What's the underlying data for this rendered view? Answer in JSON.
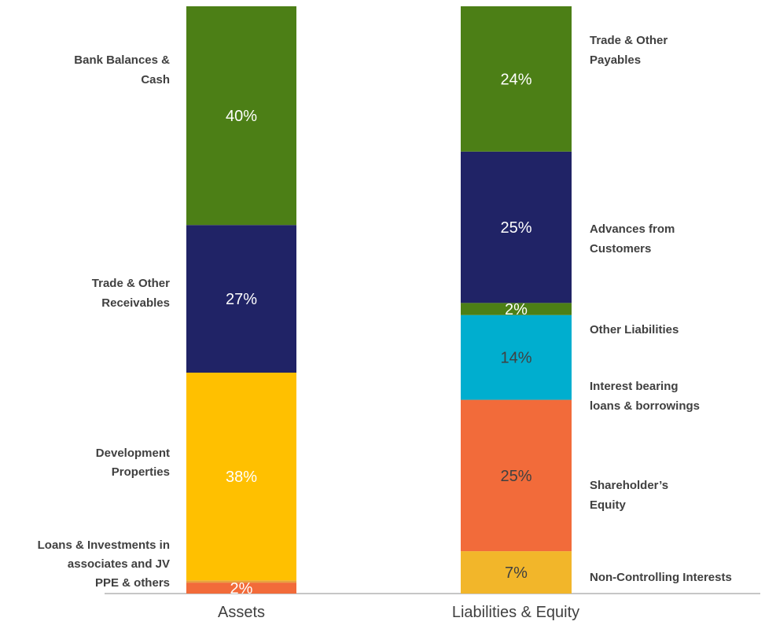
{
  "chart_data": {
    "type": "bar",
    "stacked": true,
    "percent": true,
    "categories": [
      "Assets",
      "Liabilities & Equity"
    ],
    "ylim": [
      0,
      100
    ],
    "grid": false,
    "legend": "none",
    "bars": [
      {
        "category": "Assets",
        "segments": [
          {
            "annotation": [
              "PPE & others"
            ],
            "value": 2,
            "label": "2%",
            "color": "#F26B3A",
            "text_color": "#ffffff"
          },
          {
            "annotation": [
              "Loans & Investments in",
              "associates and JV"
            ],
            "value": 0.4,
            "label": "",
            "color": "#E8A33D",
            "text_color": "#ffffff"
          },
          {
            "annotation": [
              "Development",
              "Properties"
            ],
            "value": 38,
            "label": "38%",
            "color": "#FFC000",
            "text_color": "#ffffff"
          },
          {
            "annotation": [
              "Trade & Other",
              "Receivables"
            ],
            "value": 27,
            "label": "27%",
            "color": "#202366",
            "text_color": "#ffffff"
          },
          {
            "annotation": [
              "Bank Balances &",
              "Cash"
            ],
            "value": 40,
            "label": "40%",
            "color": "#4C7F16",
            "text_color": "#ffffff"
          }
        ]
      },
      {
        "category": "Liabilities & Equity",
        "segments": [
          {
            "annotation": [
              "Non-Controlling Interests"
            ],
            "value": 7,
            "label": "7%",
            "color": "#F2B62A",
            "text_color": "#404040"
          },
          {
            "annotation": [
              "Shareholder’s",
              "Equity"
            ],
            "value": 25,
            "label": "25%",
            "color": "#F26B3A",
            "text_color": "#404040"
          },
          {
            "annotation": [
              "Interest bearing",
              "loans & borrowings"
            ],
            "value": 14,
            "label": "14%",
            "color": "#00AECF",
            "text_color": "#404040"
          },
          {
            "annotation": [
              "Other Liabilities"
            ],
            "value": 2,
            "label": "2%",
            "color": "#4C7F16",
            "text_color": "#ffffff"
          },
          {
            "annotation": [
              "Advances from",
              "Customers"
            ],
            "value": 25,
            "label": "25%",
            "color": "#202366",
            "text_color": "#ffffff"
          },
          {
            "annotation": [
              "Trade & Other",
              "Payables"
            ],
            "value": 24,
            "label": "24%",
            "color": "#4C7F16",
            "text_color": "#ffffff"
          }
        ]
      }
    ]
  },
  "colors": {
    "axis": "#8C8C8C",
    "text": "#404040"
  }
}
